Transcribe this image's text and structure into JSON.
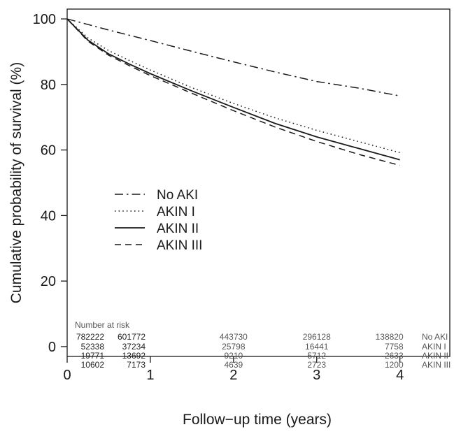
{
  "chart_data": {
    "type": "line",
    "title": "",
    "xlabel": "Follow−up time (years)",
    "ylabel": "Cumulative probability of survival (%)",
    "xlim": [
      0,
      4.6
    ],
    "ylim": [
      -3,
      103
    ],
    "x_ticks": [
      "0",
      "1",
      "2",
      "3",
      "4"
    ],
    "y_ticks": [
      "0",
      "20",
      "40",
      "60",
      "80",
      "100"
    ],
    "grid": false,
    "legend_placement": "center-left",
    "series": [
      {
        "name": "No AKI",
        "dash": "dashdot",
        "x": [
          0,
          0.5,
          1,
          1.5,
          2,
          2.5,
          3,
          3.5,
          4
        ],
        "y": [
          100,
          96.6,
          93.4,
          90.1,
          86.9,
          83.8,
          80.9,
          78.9,
          76.5
        ]
      },
      {
        "name": "AKIN I",
        "dash": "dotted",
        "x": [
          0,
          0.25,
          0.5,
          0.75,
          1,
          1.5,
          2,
          2.5,
          3,
          3.5,
          4
        ],
        "y": [
          100,
          94.2,
          90.3,
          87.3,
          84.4,
          79.0,
          74.2,
          69.8,
          66.0,
          62.6,
          59.2
        ]
      },
      {
        "name": "AKIN II",
        "dash": "solid",
        "x": [
          0,
          0.25,
          0.5,
          0.75,
          1,
          1.5,
          2,
          2.5,
          3,
          3.5,
          4
        ],
        "y": [
          100,
          93.5,
          89.3,
          86.2,
          83.3,
          78.0,
          73.0,
          68.1,
          64.0,
          60.5,
          57.0
        ]
      },
      {
        "name": "AKIN III",
        "dash": "dashed",
        "x": [
          0,
          0.25,
          0.5,
          0.75,
          1,
          1.5,
          2,
          2.5,
          3,
          3.5,
          4
        ],
        "y": [
          100,
          93.2,
          88.9,
          85.7,
          82.7,
          77.3,
          72.0,
          67.0,
          62.6,
          58.7,
          55.3
        ]
      }
    ],
    "risk_table": {
      "title": "Number at risk",
      "times": [
        0,
        0.5,
        2,
        3,
        4
      ],
      "rows": [
        {
          "label": "No AKI",
          "values": [
            "782222",
            "601772",
            "443730",
            "296128",
            "138820"
          ]
        },
        {
          "label": "AKIN I",
          "values": [
            "52338",
            "37234",
            "25798",
            "16441",
            "7758"
          ]
        },
        {
          "label": "AKIN II",
          "values": [
            "19771",
            "13692",
            "9210",
            "5712",
            "2633"
          ]
        },
        {
          "label": "AKIN III",
          "values": [
            "10602",
            "7173",
            "4639",
            "2723",
            "1200"
          ]
        }
      ]
    }
  }
}
